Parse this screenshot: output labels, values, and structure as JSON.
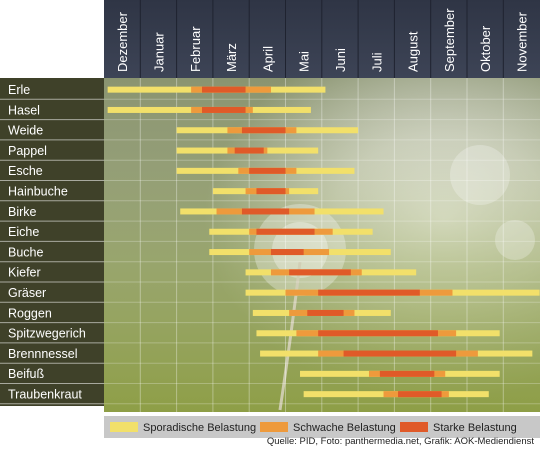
{
  "chart_data": {
    "type": "gantt",
    "months": [
      "Dezember",
      "Januar",
      "Februar",
      "März",
      "April",
      "Mai",
      "Juni",
      "Juli",
      "August",
      "September",
      "Oktober",
      "November"
    ],
    "legend": [
      {
        "key": "sporadic",
        "label": "Sporadische Belastung",
        "color": "#f2e06a"
      },
      {
        "key": "weak",
        "label": "Schwache Belastung",
        "color": "#ee9a3c"
      },
      {
        "key": "strong",
        "label": "Starke Belastung",
        "color": "#e05a28"
      }
    ],
    "plants": [
      {
        "name": "Erle",
        "sporadic": [
          0.1,
          6.1
        ],
        "weak": [
          2.4,
          4.6
        ],
        "strong": [
          2.7,
          3.9
        ]
      },
      {
        "name": "Hasel",
        "sporadic": [
          0.1,
          5.7
        ],
        "weak": [
          2.4,
          4.1
        ],
        "strong": [
          2.7,
          3.9
        ]
      },
      {
        "name": "Weide",
        "sporadic": [
          2.0,
          7.0
        ],
        "weak": [
          3.4,
          5.3
        ],
        "strong": [
          3.8,
          5.0
        ]
      },
      {
        "name": "Pappel",
        "sporadic": [
          2.0,
          5.9
        ],
        "weak": [
          3.4,
          4.5
        ],
        "strong": [
          3.6,
          4.4
        ]
      },
      {
        "name": "Esche",
        "sporadic": [
          2.0,
          6.9
        ],
        "weak": [
          3.7,
          5.3
        ],
        "strong": [
          4.0,
          5.0
        ]
      },
      {
        "name": "Hainbuche",
        "sporadic": [
          3.0,
          5.9
        ],
        "weak": [
          3.9,
          5.1
        ],
        "strong": [
          4.2,
          5.0
        ]
      },
      {
        "name": "Birke",
        "sporadic": [
          2.1,
          7.7
        ],
        "weak": [
          3.1,
          5.8
        ],
        "strong": [
          3.8,
          5.1
        ]
      },
      {
        "name": "Eiche",
        "sporadic": [
          2.9,
          7.4
        ],
        "weak": [
          4.0,
          6.3
        ],
        "strong": [
          4.2,
          5.8
        ]
      },
      {
        "name": "Buche",
        "sporadic": [
          2.9,
          7.9
        ],
        "weak": [
          4.0,
          6.2
        ],
        "strong": [
          4.6,
          5.5
        ]
      },
      {
        "name": "Kiefer",
        "sporadic": [
          3.9,
          8.6
        ],
        "weak": [
          4.6,
          7.1
        ],
        "strong": [
          5.1,
          6.8
        ]
      },
      {
        "name": "Gräser",
        "sporadic": [
          3.9,
          12.0
        ],
        "weak": [
          5.0,
          9.6
        ],
        "strong": [
          5.9,
          8.7
        ]
      },
      {
        "name": "Roggen",
        "sporadic": [
          4.1,
          7.9
        ],
        "weak": [
          5.1,
          6.9
        ],
        "strong": [
          5.6,
          6.6
        ]
      },
      {
        "name": "Spitzwegerich",
        "sporadic": [
          4.2,
          10.9
        ],
        "weak": [
          5.3,
          9.7
        ],
        "strong": [
          5.9,
          9.2
        ]
      },
      {
        "name": "Brennnessel",
        "sporadic": [
          4.3,
          11.8
        ],
        "weak": [
          5.9,
          10.3
        ],
        "strong": [
          6.6,
          9.7
        ]
      },
      {
        "name": "Beifuß",
        "sporadic": [
          5.4,
          10.9
        ],
        "weak": [
          7.3,
          9.4
        ],
        "strong": [
          7.6,
          9.1
        ]
      },
      {
        "name": "Traubenkraut",
        "sporadic": [
          5.5,
          10.6
        ],
        "weak": [
          7.7,
          9.5
        ],
        "strong": [
          8.1,
          9.3
        ]
      }
    ]
  },
  "source": "Quelle: PID, Foto: panthermedia.net, Grafik: AOK-Mediendienst"
}
